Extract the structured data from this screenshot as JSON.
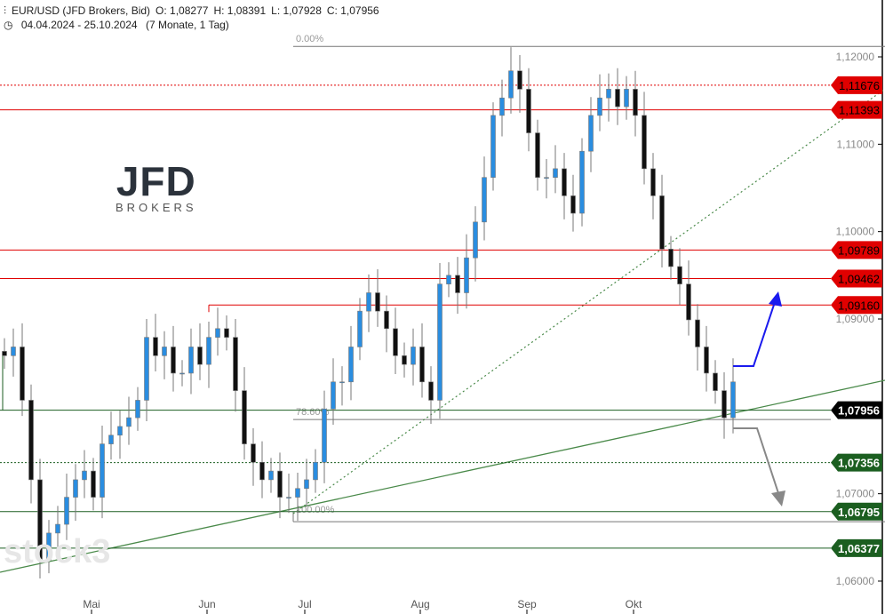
{
  "header": {
    "symbol": "EUR/USD (JFD Brokers, Bid)",
    "open": "O: 1,08277",
    "high": "H: 1,08391",
    "low": "L: 1,07928",
    "close": "C: 1,07956",
    "range": "04.04.2024 - 25.10.2024",
    "duration": "(7 Monate, 1 Tag)"
  },
  "logo": {
    "name": "JFD",
    "sub": "BROKERS"
  },
  "watermark": "stock3",
  "chart_data": {
    "type": "candlestick",
    "title": "EUR/USD (JFD Brokers, Bid)",
    "ylim": [
      1.055,
      1.1225
    ],
    "y_ticks": [
      {
        "v": 1.12,
        "label": "1,12000"
      },
      {
        "v": 1.11,
        "label": "1,11000"
      },
      {
        "v": 1.1,
        "label": "1,10000"
      },
      {
        "v": 1.09,
        "label": "1,09000"
      },
      {
        "v": 1.07,
        "label": "1,07000"
      },
      {
        "v": 1.06,
        "label": "1,06000"
      }
    ],
    "x_ticks": [
      {
        "i": 10,
        "label": "Mai"
      },
      {
        "i": 23,
        "label": "Jun"
      },
      {
        "i": 34,
        "label": "Jul"
      },
      {
        "i": 47,
        "label": "Aug"
      },
      {
        "i": 59,
        "label": "Sep"
      },
      {
        "i": 71,
        "label": "Okt"
      }
    ],
    "closes": [
      1.0858,
      1.0868,
      1.0807,
      1.0716,
      1.0624,
      1.0655,
      1.0665,
      1.0696,
      1.0716,
      1.0726,
      1.0696,
      1.0757,
      1.0767,
      1.0777,
      1.0787,
      1.0807,
      1.0879,
      1.0858,
      1.0868,
      1.0838,
      1.0838,
      1.0868,
      1.0848,
      1.0879,
      1.0889,
      1.0879,
      1.0818,
      1.0757,
      1.0736,
      1.0716,
      1.0726,
      1.0696,
      1.0696,
      1.0706,
      1.0716,
      1.0736,
      1.0797,
      1.0828,
      1.0828,
      1.0868,
      1.0909,
      1.093,
      1.0909,
      1.0889,
      1.0858,
      1.0848,
      1.0868,
      1.0828,
      1.0807,
      1.094,
      1.095,
      1.093,
      1.097,
      1.1011,
      1.1062,
      1.1133,
      1.1153,
      1.1184,
      1.1163,
      1.1113,
      1.1062,
      1.1062,
      1.1072,
      1.1041,
      1.1021,
      1.1092,
      1.1133,
      1.1153,
      1.1163,
      1.1143,
      1.1163,
      1.1133,
      1.1072,
      1.1041,
      1.098,
      1.096,
      1.094,
      1.0899,
      1.0868,
      1.0838,
      1.0818,
      1.0787,
      1.0828
    ],
    "levels": [
      {
        "v": 1.11676,
        "label": "1,11676",
        "kind": "resistance",
        "style": "dotted"
      },
      {
        "v": 1.11393,
        "label": "1,11393",
        "kind": "resistance",
        "style": "solid"
      },
      {
        "v": 1.09789,
        "label": "1,09789",
        "kind": "resistance",
        "style": "solid"
      },
      {
        "v": 1.09462,
        "label": "1,09462",
        "kind": "resistance",
        "style": "solid"
      },
      {
        "v": 1.0916,
        "label": "1,09160",
        "kind": "resistance",
        "style": "solid",
        "from_i": 23
      },
      {
        "v": 1.07956,
        "label": "1,07956",
        "kind": "current",
        "style": "solid"
      },
      {
        "v": 1.07356,
        "label": "1,07356",
        "kind": "support",
        "style": "dotted"
      },
      {
        "v": 1.06795,
        "label": "1,06795",
        "kind": "support",
        "style": "solid"
      },
      {
        "v": 1.06377,
        "label": "1,06377",
        "kind": "support",
        "style": "solid"
      }
    ],
    "fibonacci": [
      {
        "v": 1.1212,
        "label": "0.00%"
      },
      {
        "v": 1.0785,
        "label": "78.60%"
      },
      {
        "v": 1.0668,
        "label": "100.00%"
      }
    ],
    "colors": {
      "up": "#2a8de0",
      "down": "#111111",
      "resistance": "#e00000",
      "support": "#1b5e20",
      "current": "#000000",
      "trend": "#4a8a4a",
      "bull_arrow": "#1a1aee",
      "bear_arrow": "#888888"
    }
  }
}
